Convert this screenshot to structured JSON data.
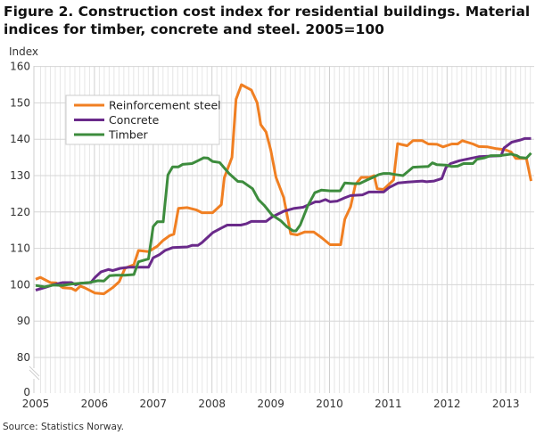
{
  "title": "Figure 2. Construction cost index for residential buildings. Material indices for timber, concrete and steel. 2005=100",
  "source": "Source: Statistics Norway.",
  "chart_data": {
    "type": "line",
    "title": "Figure 2. Construction cost index for residential buildings. Material indices for timber, concrete and steel. 2005=100",
    "ylabel": "Index",
    "xlabel": "",
    "y_ticks": [
      "0",
      "80",
      "90",
      "100",
      "110",
      "120",
      "130",
      "140",
      "150",
      "160"
    ],
    "x_ticks": [
      "2005",
      "2006",
      "2007",
      "2008",
      "2009",
      "2010",
      "2011",
      "2012",
      "2013"
    ],
    "ylim": [
      0,
      160
    ],
    "y_axis_break": [
      0,
      80
    ],
    "xlim": [
      2005,
      2013.45
    ],
    "grid": true,
    "legend_position": "top-left",
    "series": [
      {
        "name": "Reinforcement steel",
        "color": "#f07f22",
        "points": [
          [
            2005.0,
            101.5
          ],
          [
            2005.08,
            102
          ],
          [
            2005.25,
            100.6
          ],
          [
            2005.35,
            100.5
          ],
          [
            2005.46,
            99.2
          ],
          [
            2005.61,
            99
          ],
          [
            2005.68,
            98.4
          ],
          [
            2005.76,
            99.6
          ],
          [
            2005.83,
            99.2
          ],
          [
            2006.01,
            97.7
          ],
          [
            2006.16,
            97.5
          ],
          [
            2006.31,
            99.2
          ],
          [
            2006.42,
            100.8
          ],
          [
            2006.52,
            104.5
          ],
          [
            2006.59,
            105
          ],
          [
            2006.67,
            105.5
          ],
          [
            2006.75,
            109.4
          ],
          [
            2006.92,
            109.1
          ],
          [
            2007.07,
            110.6
          ],
          [
            2007.17,
            112.2
          ],
          [
            2007.28,
            113.5
          ],
          [
            2007.35,
            113.9
          ],
          [
            2007.43,
            121
          ],
          [
            2007.58,
            121.2
          ],
          [
            2007.73,
            120.6
          ],
          [
            2007.83,
            119.8
          ],
          [
            2008.01,
            119.8
          ],
          [
            2008.16,
            122
          ],
          [
            2008.21,
            129.4
          ],
          [
            2008.34,
            135
          ],
          [
            2008.41,
            151
          ],
          [
            2008.5,
            155
          ],
          [
            2008.67,
            153.5
          ],
          [
            2008.77,
            150
          ],
          [
            2008.83,
            144
          ],
          [
            2008.92,
            142
          ],
          [
            2009.0,
            137
          ],
          [
            2009.09,
            129.5
          ],
          [
            2009.22,
            124
          ],
          [
            2009.34,
            114
          ],
          [
            2009.45,
            113.7
          ],
          [
            2009.58,
            114.5
          ],
          [
            2009.73,
            114.5
          ],
          [
            2009.86,
            113
          ],
          [
            2010.01,
            111
          ],
          [
            2010.19,
            111
          ],
          [
            2010.26,
            118
          ],
          [
            2010.36,
            121.5
          ],
          [
            2010.44,
            127.5
          ],
          [
            2010.54,
            129.5
          ],
          [
            2010.68,
            129.5
          ],
          [
            2010.76,
            130
          ],
          [
            2010.81,
            126.4
          ],
          [
            2010.92,
            126.2
          ],
          [
            2011.09,
            128.8
          ],
          [
            2011.16,
            138.8
          ],
          [
            2011.32,
            138.2
          ],
          [
            2011.42,
            139.6
          ],
          [
            2011.58,
            139.6
          ],
          [
            2011.68,
            138.7
          ],
          [
            2011.83,
            138.6
          ],
          [
            2011.93,
            137.9
          ],
          [
            2012.08,
            138.7
          ],
          [
            2012.18,
            138.7
          ],
          [
            2012.26,
            139.6
          ],
          [
            2012.44,
            138.7
          ],
          [
            2012.54,
            138
          ],
          [
            2012.69,
            137.9
          ],
          [
            2012.84,
            137.4
          ],
          [
            2012.99,
            137.1
          ],
          [
            2013.09,
            136.5
          ],
          [
            2013.17,
            134.7
          ],
          [
            2013.35,
            134.7
          ],
          [
            2013.43,
            128.5
          ]
        ]
      },
      {
        "name": "Concrete",
        "color": "#6a2a8a",
        "points": [
          [
            2005.0,
            98.5
          ],
          [
            2005.15,
            99.2
          ],
          [
            2005.3,
            100
          ],
          [
            2005.46,
            100.6
          ],
          [
            2005.61,
            100.6
          ],
          [
            2005.68,
            100
          ],
          [
            2005.76,
            100.4
          ],
          [
            2005.94,
            100.6
          ],
          [
            2006.01,
            102
          ],
          [
            2006.11,
            103.5
          ],
          [
            2006.24,
            104.2
          ],
          [
            2006.31,
            103.9
          ],
          [
            2006.44,
            104.5
          ],
          [
            2006.59,
            104.8
          ],
          [
            2006.92,
            104.8
          ],
          [
            2007.0,
            107.4
          ],
          [
            2007.1,
            108.2
          ],
          [
            2007.2,
            109.4
          ],
          [
            2007.33,
            110.2
          ],
          [
            2007.58,
            110.4
          ],
          [
            2007.66,
            110.8
          ],
          [
            2007.76,
            110.8
          ],
          [
            2007.83,
            111.6
          ],
          [
            2008.01,
            114.3
          ],
          [
            2008.16,
            115.6
          ],
          [
            2008.26,
            116.4
          ],
          [
            2008.49,
            116.4
          ],
          [
            2008.59,
            116.8
          ],
          [
            2008.67,
            117.4
          ],
          [
            2008.92,
            117.4
          ],
          [
            2009.02,
            118.6
          ],
          [
            2009.22,
            120.2
          ],
          [
            2009.4,
            121
          ],
          [
            2009.55,
            121.3
          ],
          [
            2009.76,
            122.8
          ],
          [
            2009.83,
            122.8
          ],
          [
            2009.93,
            123.4
          ],
          [
            2010.01,
            122.8
          ],
          [
            2010.13,
            123
          ],
          [
            2010.26,
            123.9
          ],
          [
            2010.36,
            124.5
          ],
          [
            2010.56,
            124.7
          ],
          [
            2010.67,
            125.5
          ],
          [
            2010.92,
            125.5
          ],
          [
            2011.02,
            126.8
          ],
          [
            2011.17,
            128
          ],
          [
            2011.33,
            128.2
          ],
          [
            2011.58,
            128.5
          ],
          [
            2011.65,
            128.3
          ],
          [
            2011.78,
            128.5
          ],
          [
            2011.91,
            129.2
          ],
          [
            2011.98,
            132.2
          ],
          [
            2012.06,
            133.3
          ],
          [
            2012.21,
            134.1
          ],
          [
            2012.39,
            134.7
          ],
          [
            2012.54,
            135.2
          ],
          [
            2012.92,
            135.5
          ],
          [
            2012.97,
            137.6
          ],
          [
            2013.1,
            139.2
          ],
          [
            2013.25,
            139.8
          ],
          [
            2013.32,
            140.2
          ],
          [
            2013.43,
            140.2
          ]
        ]
      },
      {
        "name": "Timber",
        "color": "#3d8c3d",
        "points": [
          [
            2005.0,
            99.8
          ],
          [
            2005.15,
            99.4
          ],
          [
            2005.3,
            99.9
          ],
          [
            2005.46,
            99.8
          ],
          [
            2005.61,
            100.2
          ],
          [
            2005.76,
            100.4
          ],
          [
            2005.91,
            100.6
          ],
          [
            2006.06,
            101.1
          ],
          [
            2006.16,
            101
          ],
          [
            2006.26,
            102.5
          ],
          [
            2006.36,
            102.6
          ],
          [
            2006.52,
            102.6
          ],
          [
            2006.67,
            102.8
          ],
          [
            2006.75,
            106.3
          ],
          [
            2006.92,
            107.1
          ],
          [
            2007.0,
            116
          ],
          [
            2007.07,
            117.3
          ],
          [
            2007.17,
            117.3
          ],
          [
            2007.25,
            130.2
          ],
          [
            2007.33,
            132.4
          ],
          [
            2007.43,
            132.4
          ],
          [
            2007.5,
            133.1
          ],
          [
            2007.66,
            133.3
          ],
          [
            2007.76,
            134.1
          ],
          [
            2007.86,
            134.9
          ],
          [
            2007.93,
            134.8
          ],
          [
            2008.01,
            133.9
          ],
          [
            2008.13,
            133.6
          ],
          [
            2008.29,
            130.6
          ],
          [
            2008.44,
            128.4
          ],
          [
            2008.52,
            128.3
          ],
          [
            2008.69,
            126.4
          ],
          [
            2008.79,
            123.4
          ],
          [
            2008.89,
            121.8
          ],
          [
            2009.02,
            119.2
          ],
          [
            2009.17,
            117.6
          ],
          [
            2009.27,
            116
          ],
          [
            2009.38,
            114.8
          ],
          [
            2009.43,
            114.8
          ],
          [
            2009.5,
            116.4
          ],
          [
            2009.63,
            121.7
          ],
          [
            2009.75,
            125.3
          ],
          [
            2009.86,
            126
          ],
          [
            2010.01,
            125.8
          ],
          [
            2010.18,
            125.8
          ],
          [
            2010.26,
            128
          ],
          [
            2010.41,
            127.8
          ],
          [
            2010.51,
            127.8
          ],
          [
            2010.64,
            128.8
          ],
          [
            2010.74,
            129.5
          ],
          [
            2010.84,
            130.3
          ],
          [
            2010.92,
            130.6
          ],
          [
            2011.02,
            130.6
          ],
          [
            2011.12,
            130.3
          ],
          [
            2011.25,
            130
          ],
          [
            2011.42,
            132.3
          ],
          [
            2011.52,
            132.4
          ],
          [
            2011.68,
            132.5
          ],
          [
            2011.75,
            133.5
          ],
          [
            2011.83,
            133
          ],
          [
            2011.98,
            132.9
          ],
          [
            2012.08,
            132.5
          ],
          [
            2012.18,
            132.6
          ],
          [
            2012.28,
            133.3
          ],
          [
            2012.44,
            133.3
          ],
          [
            2012.51,
            134.5
          ],
          [
            2012.64,
            134.9
          ],
          [
            2012.74,
            135.5
          ],
          [
            2012.89,
            135.5
          ],
          [
            2013.09,
            135.9
          ],
          [
            2013.19,
            135.5
          ],
          [
            2013.24,
            135
          ],
          [
            2013.35,
            134.8
          ],
          [
            2013.43,
            136.2
          ]
        ]
      }
    ]
  }
}
